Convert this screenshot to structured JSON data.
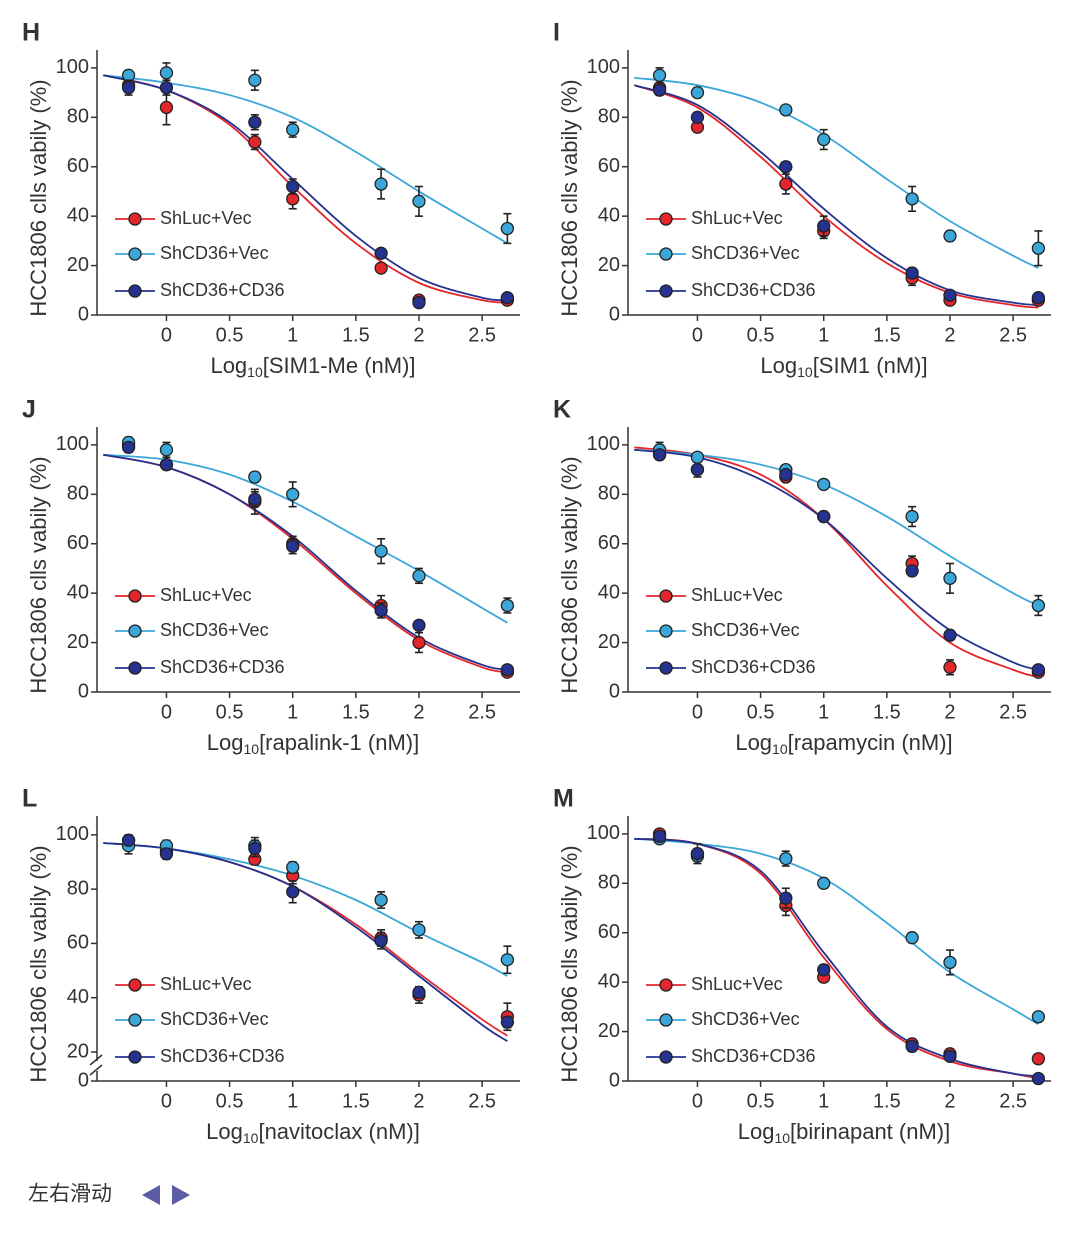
{
  "chart_data": [
    {
      "type": "line",
      "panel": "H",
      "x_label": [
        "Log",
        "10",
        "[SIM1-Me (nM)]"
      ],
      "y_label": "HCC1806 clls vabily (%)",
      "x": [
        -0.3,
        0,
        0.7,
        1,
        1.7,
        2,
        2.7
      ],
      "fit_x": [
        -0.5,
        0,
        0.5,
        1,
        1.5,
        2,
        2.5,
        2.7
      ],
      "xlim": [
        -0.55,
        2.8
      ],
      "xticks": [
        0,
        0.5,
        1,
        1.5,
        2,
        2.5
      ],
      "ylim": [
        0,
        104
      ],
      "yticks": [
        0,
        20,
        40,
        60,
        80,
        100
      ],
      "legend": "lower left",
      "series": [
        {
          "name": "ShLuc+Vec",
          "color": "#e3262b",
          "values": [
            93,
            84,
            70,
            47,
            19,
            6,
            6
          ],
          "errors": [
            3,
            7,
            3,
            4,
            1,
            2,
            1
          ],
          "fit": [
            97,
            91,
            77,
            52,
            29,
            13,
            6,
            5
          ]
        },
        {
          "name": "ShCD36+Vec",
          "color": "#3aa7d8",
          "values": [
            97,
            98,
            95,
            75,
            53,
            46,
            35
          ],
          "errors": [
            2,
            4,
            4,
            3,
            6,
            6,
            6
          ],
          "fit": [
            97,
            94,
            89,
            80,
            66,
            50,
            35,
            29
          ]
        },
        {
          "name": "ShCD36+CD36",
          "color": "#25328f",
          "values": [
            92,
            92,
            78,
            52,
            25,
            5,
            7
          ],
          "errors": [
            3,
            3,
            3,
            3,
            1,
            1,
            1
          ],
          "fit": [
            97,
            91,
            78,
            55,
            32,
            15,
            7,
            6
          ]
        }
      ]
    },
    {
      "type": "line",
      "panel": "I",
      "x_label": [
        "Log",
        "10",
        "[SIM1 (nM)]"
      ],
      "y_label": "HCC1806 clls vabily (%)",
      "x": [
        -0.3,
        0,
        0.7,
        1,
        1.7,
        2,
        2.7
      ],
      "fit_x": [
        -0.5,
        0,
        0.5,
        1,
        1.5,
        2,
        2.5,
        2.7
      ],
      "xlim": [
        -0.55,
        2.8
      ],
      "xticks": [
        0,
        0.5,
        1,
        1.5,
        2,
        2.5
      ],
      "ylim": [
        0,
        104
      ],
      "yticks": [
        0,
        20,
        40,
        60,
        80,
        100
      ],
      "legend": "lower left",
      "series": [
        {
          "name": "ShLuc+Vec",
          "color": "#e3262b",
          "values": [
            92,
            76,
            53,
            34,
            15,
            6,
            6
          ],
          "errors": [
            2,
            2,
            4,
            3,
            3,
            1,
            1
          ],
          "fit": [
            93,
            84,
            64,
            40,
            21,
            9,
            4,
            3
          ]
        },
        {
          "name": "ShCD36+Vec",
          "color": "#3aa7d8",
          "values": [
            97,
            90,
            83,
            71,
            47,
            32,
            27
          ],
          "errors": [
            3,
            2,
            1,
            4,
            5,
            2,
            7
          ],
          "fit": [
            96,
            93,
            86,
            73,
            55,
            38,
            24,
            19
          ]
        },
        {
          "name": "ShCD36+CD36",
          "color": "#25328f",
          "values": [
            91,
            80,
            60,
            36,
            17,
            8,
            7
          ],
          "errors": [
            2,
            2,
            2,
            4,
            2,
            1,
            1
          ],
          "fit": [
            93,
            85,
            66,
            43,
            23,
            10,
            5,
            4
          ]
        }
      ]
    },
    {
      "type": "line",
      "panel": "J",
      "x_label": [
        "Log",
        "10",
        "[rapalink-1 (nM)]"
      ],
      "y_label": "HCC1806 clls vabily (%)",
      "x": [
        -0.3,
        0,
        0.7,
        1,
        1.7,
        2,
        2.7
      ],
      "fit_x": [
        -0.5,
        0,
        0.5,
        1,
        1.5,
        2,
        2.5,
        2.7
      ],
      "xlim": [
        -0.55,
        2.8
      ],
      "xticks": [
        0,
        0.5,
        1,
        1.5,
        2,
        2.5
      ],
      "ylim": [
        0,
        104
      ],
      "yticks": [
        0,
        20,
        40,
        60,
        80,
        100
      ],
      "legend": "lower left",
      "series": [
        {
          "name": "ShLuc+Vec",
          "color": "#e3262b",
          "values": [
            100,
            92,
            77,
            60,
            35,
            20,
            8
          ],
          "errors": [
            3,
            2,
            5,
            3,
            4,
            4,
            1
          ],
          "fit": [
            96,
            91,
            80,
            62,
            40,
            21,
            10,
            8
          ]
        },
        {
          "name": "ShCD36+Vec",
          "color": "#3aa7d8",
          "values": [
            101,
            98,
            87,
            80,
            57,
            47,
            35
          ],
          "errors": [
            2,
            3,
            2,
            5,
            5,
            3,
            3
          ],
          "fit": [
            96,
            94,
            88,
            77,
            63,
            49,
            34,
            28
          ]
        },
        {
          "name": "ShCD36+CD36",
          "color": "#25328f",
          "values": [
            99,
            92,
            78,
            59,
            33,
            27,
            9
          ],
          "errors": [
            2,
            2,
            3,
            3,
            3,
            1,
            1
          ],
          "fit": [
            96,
            91,
            80,
            63,
            41,
            22,
            11,
            9
          ]
        }
      ]
    },
    {
      "type": "line",
      "panel": "K",
      "x_label": [
        "Log",
        "10",
        "[rapamycin (nM)]"
      ],
      "y_label": "HCC1806 clls vabily (%)",
      "x": [
        -0.3,
        0,
        0.7,
        1,
        1.7,
        2,
        2.7
      ],
      "fit_x": [
        -0.5,
        0,
        0.5,
        1,
        1.5,
        2,
        2.5,
        2.7
      ],
      "xlim": [
        -0.55,
        2.8
      ],
      "xticks": [
        0,
        0.5,
        1,
        1.5,
        2,
        2.5
      ],
      "ylim": [
        0,
        104
      ],
      "yticks": [
        0,
        20,
        40,
        60,
        80,
        100
      ],
      "legend": "lower left",
      "series": [
        {
          "name": "ShLuc+Vec",
          "color": "#e3262b",
          "values": [
            96,
            90,
            87,
            71,
            52,
            10,
            8
          ],
          "errors": [
            2,
            3,
            1,
            2,
            3,
            3,
            1
          ],
          "fit": [
            99,
            96,
            88,
            70,
            43,
            20,
            9,
            6
          ]
        },
        {
          "name": "ShCD36+Vec",
          "color": "#3aa7d8",
          "values": [
            98,
            95,
            90,
            84,
            71,
            46,
            35
          ],
          "errors": [
            3,
            1,
            1,
            1,
            4,
            6,
            4
          ],
          "fit": [
            98,
            96,
            92,
            84,
            71,
            55,
            40,
            35
          ]
        },
        {
          "name": "ShCD36+CD36",
          "color": "#25328f",
          "values": [
            96,
            90,
            88,
            71,
            49,
            23,
            9
          ],
          "errors": [
            1,
            2,
            1,
            1,
            2,
            2,
            1
          ],
          "fit": [
            98,
            95,
            86,
            70,
            46,
            25,
            12,
            9
          ]
        }
      ]
    },
    {
      "type": "line",
      "panel": "L",
      "x_label": [
        "Log",
        "10",
        "[navitoclax (nM)]"
      ],
      "y_label": "HCC1806 clls vabily (%)",
      "x": [
        -0.3,
        0,
        0.7,
        1,
        1.7,
        2,
        2.7
      ],
      "fit_x": [
        -0.5,
        0,
        0.5,
        1,
        1.5,
        2,
        2.5,
        2.7
      ],
      "xlim": [
        -0.55,
        2.8
      ],
      "xticks": [
        0,
        0.5,
        1,
        1.5,
        2,
        2.5
      ],
      "ylim": [
        20,
        104
      ],
      "yticks": [
        20,
        40,
        60,
        80,
        100
      ],
      "axis_break_tick": 0,
      "legend": "lower left",
      "series": [
        {
          "name": "ShLuc+Vec",
          "color": "#e3262b",
          "values": [
            98,
            94,
            91,
            85,
            62,
            41,
            33
          ],
          "errors": [
            2,
            2,
            2,
            3,
            3,
            3,
            5
          ],
          "fit": [
            97,
            95,
            90,
            81,
            67,
            49,
            32,
            26
          ]
        },
        {
          "name": "ShCD36+Vec",
          "color": "#3aa7d8",
          "values": [
            96,
            96,
            96,
            88,
            76,
            65,
            54
          ],
          "errors": [
            3,
            2,
            3,
            2,
            3,
            3,
            5
          ],
          "fit": [
            97,
            95,
            91,
            85,
            76,
            64,
            53,
            48
          ]
        },
        {
          "name": "ShCD36+CD36",
          "color": "#25328f",
          "values": [
            98,
            93,
            95,
            79,
            61,
            42,
            31
          ],
          "errors": [
            1,
            2,
            3,
            4,
            3,
            2,
            2
          ],
          "fit": [
            97,
            95,
            90,
            81,
            66,
            48,
            30,
            24
          ]
        }
      ]
    },
    {
      "type": "line",
      "panel": "M",
      "x_label": [
        "Log",
        "10",
        "[birinapant (nM)]"
      ],
      "y_label": "HCC1806 clls vabily (%)",
      "x": [
        -0.3,
        0,
        0.7,
        1,
        1.7,
        2,
        2.7
      ],
      "fit_x": [
        -0.5,
        0,
        0.5,
        1,
        1.5,
        2,
        2.5,
        2.7
      ],
      "xlim": [
        -0.55,
        2.8
      ],
      "xticks": [
        0,
        0.5,
        1,
        1.5,
        2,
        2.5
      ],
      "ylim": [
        0,
        104
      ],
      "yticks": [
        0,
        20,
        40,
        60,
        80,
        100
      ],
      "legend": "lower left",
      "series": [
        {
          "name": "ShLuc+Vec",
          "color": "#e3262b",
          "values": [
            100,
            92,
            71,
            42,
            15,
            11,
            9
          ],
          "errors": [
            1,
            2,
            4,
            2,
            2,
            2,
            1
          ],
          "fit": [
            98,
            96,
            84,
            50,
            21,
            8,
            3,
            1
          ]
        },
        {
          "name": "ShCD36+Vec",
          "color": "#3aa7d8",
          "values": [
            98,
            91,
            90,
            80,
            58,
            48,
            26
          ],
          "errors": [
            1,
            2,
            3,
            2,
            2,
            5,
            1
          ],
          "fit": [
            98,
            96,
            92,
            82,
            64,
            44,
            29,
            23
          ]
        },
        {
          "name": "ShCD36+CD36",
          "color": "#25328f",
          "values": [
            99,
            92,
            74,
            45,
            14,
            10,
            1
          ],
          "errors": [
            1,
            4,
            4,
            2,
            2,
            1,
            1
          ],
          "fit": [
            98,
            96,
            85,
            52,
            22,
            9,
            3,
            2
          ]
        }
      ]
    }
  ],
  "footer": "左右滑动"
}
